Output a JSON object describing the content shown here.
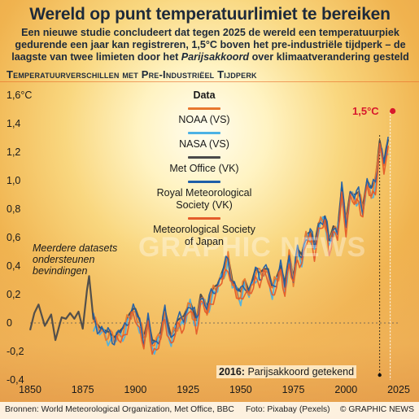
{
  "header": {
    "title": "Wereld op punt temperatuurlimiet te bereiken",
    "subtitle_line1": "Een nieuwe studie concludeert dat tegen 2025 de wereld een temperatuurpiek",
    "subtitle_line2": "gedurende een jaar kan registreren, 1,5°C boven het pre-industriële tijdperk – de",
    "subtitle_line3_a": "laagste van twee limieten door het ",
    "subtitle_line3_em": "Parijsakkoord",
    "subtitle_line3_b": " over klimaatverandering gesteld",
    "section": "Temperatuurverschillen met Pre-Industriëel Tijdperk"
  },
  "legend": {
    "title": "Data",
    "items": [
      "NOAA (VS)",
      "NASA (VS)",
      "Met Office (VK)",
      "Royal Meteorological Society (VK)",
      "Meteorological Society of Japan"
    ]
  },
  "annotations": {
    "limit": "1,5°C",
    "paris_year": "2016:",
    "paris_text": " Parijsakkoord getekend",
    "datasets": [
      "Meerdere datasets",
      "ondersteunen",
      "bevindingen"
    ]
  },
  "footer": {
    "source": "Bronnen: World Meteorological Organization, Met Office, BBC",
    "photo": "Foto: Pixabay (Pexels)",
    "brand": "© GRAPHIC NEWS"
  },
  "watermark": "GRAPHIC NEWS",
  "colors": {
    "noaa": "#e8772e",
    "nasa": "#4cb2e4",
    "met_office": "#4a4a4a",
    "rms": "#1f5fa8",
    "jma": "#e45b2a",
    "limit": "#d8182c",
    "text": "#1e2a3a"
  },
  "chart_data": {
    "type": "line",
    "title": "Temperatuurverschillen met Pre-Industriëel Tijdperk",
    "xlabel": "",
    "ylabel": "",
    "xlim": [
      1850,
      2025
    ],
    "ylim": [
      -0.4,
      1.6
    ],
    "x_ticks": [
      1850,
      1875,
      1900,
      1925,
      1950,
      1975,
      2000,
      2025
    ],
    "y_ticks": [
      -0.4,
      -0.2,
      0,
      0.2,
      0.4,
      0.6,
      0.8,
      1.0,
      1.2,
      1.4,
      1.6
    ],
    "y_tick_labels": [
      "-0,4",
      "-0,2",
      "0",
      "0,2",
      "0,4",
      "0,6",
      "0,8",
      "1,0",
      "1,2",
      "1,4",
      "1,6°C"
    ],
    "limit_line": 1.5,
    "event_year": 2016,
    "series_ids": [
      "met_office",
      "nasa",
      "noaa",
      "rms",
      "jma"
    ],
    "anchors": {
      "met_office": [
        [
          1850,
          -0.05
        ],
        [
          1852,
          0.07
        ],
        [
          1854,
          0.13
        ],
        [
          1857,
          -0.02
        ],
        [
          1860,
          0.06
        ],
        [
          1862,
          -0.12
        ],
        [
          1865,
          0.04
        ],
        [
          1867,
          0.03
        ],
        [
          1869,
          0.07
        ],
        [
          1871,
          0.03
        ],
        [
          1873,
          0.08
        ],
        [
          1875,
          -0.04
        ],
        [
          1877,
          0.23
        ],
        [
          1878,
          0.33
        ],
        [
          1880,
          0.03
        ],
        [
          1883,
          -0.03
        ],
        [
          1885,
          -0.05
        ],
        [
          1887,
          -0.06
        ],
        [
          1890,
          -0.1
        ],
        [
          1893,
          -0.05
        ],
        [
          1895,
          -0.02
        ],
        [
          1897,
          0.06
        ],
        [
          1899,
          0.1
        ],
        [
          1900,
          0.1
        ],
        [
          1902,
          0.02
        ],
        [
          1904,
          -0.1
        ],
        [
          1906,
          0.03
        ],
        [
          1908,
          -0.12
        ],
        [
          1910,
          -0.13
        ],
        [
          1912,
          -0.06
        ],
        [
          1914,
          0.09
        ],
        [
          1917,
          -0.1
        ],
        [
          1920,
          0.02
        ],
        [
          1923,
          0.05
        ],
        [
          1926,
          0.15
        ],
        [
          1929,
          0.02
        ],
        [
          1931,
          0.2
        ],
        [
          1934,
          0.12
        ],
        [
          1937,
          0.25
        ],
        [
          1939,
          0.27
        ],
        [
          1941,
          0.35
        ],
        [
          1944,
          0.47
        ],
        [
          1946,
          0.3
        ],
        [
          1948,
          0.25
        ],
        [
          1950,
          0.22
        ],
        [
          1952,
          0.3
        ],
        [
          1954,
          0.22
        ],
        [
          1957,
          0.38
        ],
        [
          1959,
          0.35
        ],
        [
          1961,
          0.38
        ],
        [
          1963,
          0.38
        ],
        [
          1965,
          0.25
        ],
        [
          1967,
          0.32
        ],
        [
          1969,
          0.4
        ],
        [
          1971,
          0.28
        ],
        [
          1973,
          0.48
        ],
        [
          1975,
          0.32
        ],
        [
          1977,
          0.52
        ],
        [
          1979,
          0.48
        ],
        [
          1981,
          0.62
        ],
        [
          1983,
          0.64
        ],
        [
          1985,
          0.55
        ],
        [
          1987,
          0.7
        ],
        [
          1988,
          0.72
        ],
        [
          1990,
          0.75
        ],
        [
          1992,
          0.58
        ],
        [
          1994,
          0.68
        ],
        [
          1996,
          0.65
        ],
        [
          1998,
          0.95
        ],
        [
          2000,
          0.72
        ],
        [
          2002,
          0.92
        ],
        [
          2004,
          0.9
        ],
        [
          2006,
          0.92
        ],
        [
          2008,
          0.82
        ],
        [
          2010,
          1.0
        ],
        [
          2012,
          0.95
        ],
        [
          2014,
          1.0
        ],
        [
          2016,
          1.28
        ],
        [
          2017,
          1.2
        ],
        [
          2018,
          1.12
        ],
        [
          2019,
          1.22
        ],
        [
          2020,
          1.29
        ]
      ]
    }
  }
}
